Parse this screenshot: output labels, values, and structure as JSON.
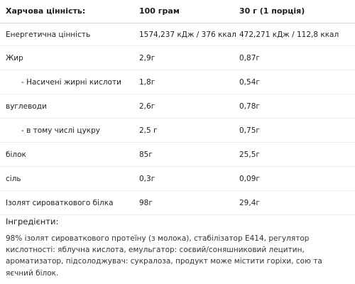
{
  "table": {
    "headers": [
      "Харчова цінність:",
      "100 грам",
      "30 г (1 порція)"
    ],
    "rows": [
      {
        "name": "Енергетична цінність",
        "per100": "1574,237 кДж / 376 ккал",
        "perServing": "472,271 кДж / 112,8 ккал"
      },
      {
        "name": "Жир",
        "per100": "2,9г",
        "perServing": "0,87г"
      },
      {
        "name": "- Насичені жирні кислоти",
        "per100": "1,8г",
        "perServing": "0,54г"
      },
      {
        "name": "вуглеводи",
        "per100": "2,6г",
        "perServing": "0,78г"
      },
      {
        "name": "- в тому числі цукру",
        "per100": "2,5 г",
        "perServing": "0,75г"
      },
      {
        "name": "білок",
        "per100": "85г",
        "perServing": "25,5г"
      },
      {
        "name": "сіль",
        "per100": "0,3г",
        "perServing": "0,09г"
      },
      {
        "name": "Ізолят сироваткового білка",
        "per100": "98г",
        "perServing": "29,4г"
      }
    ]
  },
  "ingredients": {
    "title": "Інгредієнти:",
    "text": "98% ізолят сироваткового протеїну (з молока), стабілізатор Е414, регулятор кислотності: яблучна кислота, емульгатор: соєвий/соняшниковий лецитин, ароматизатор, підсолоджувач: сукралоза, продукт може містити горіхи, сою та яєчний білок."
  }
}
